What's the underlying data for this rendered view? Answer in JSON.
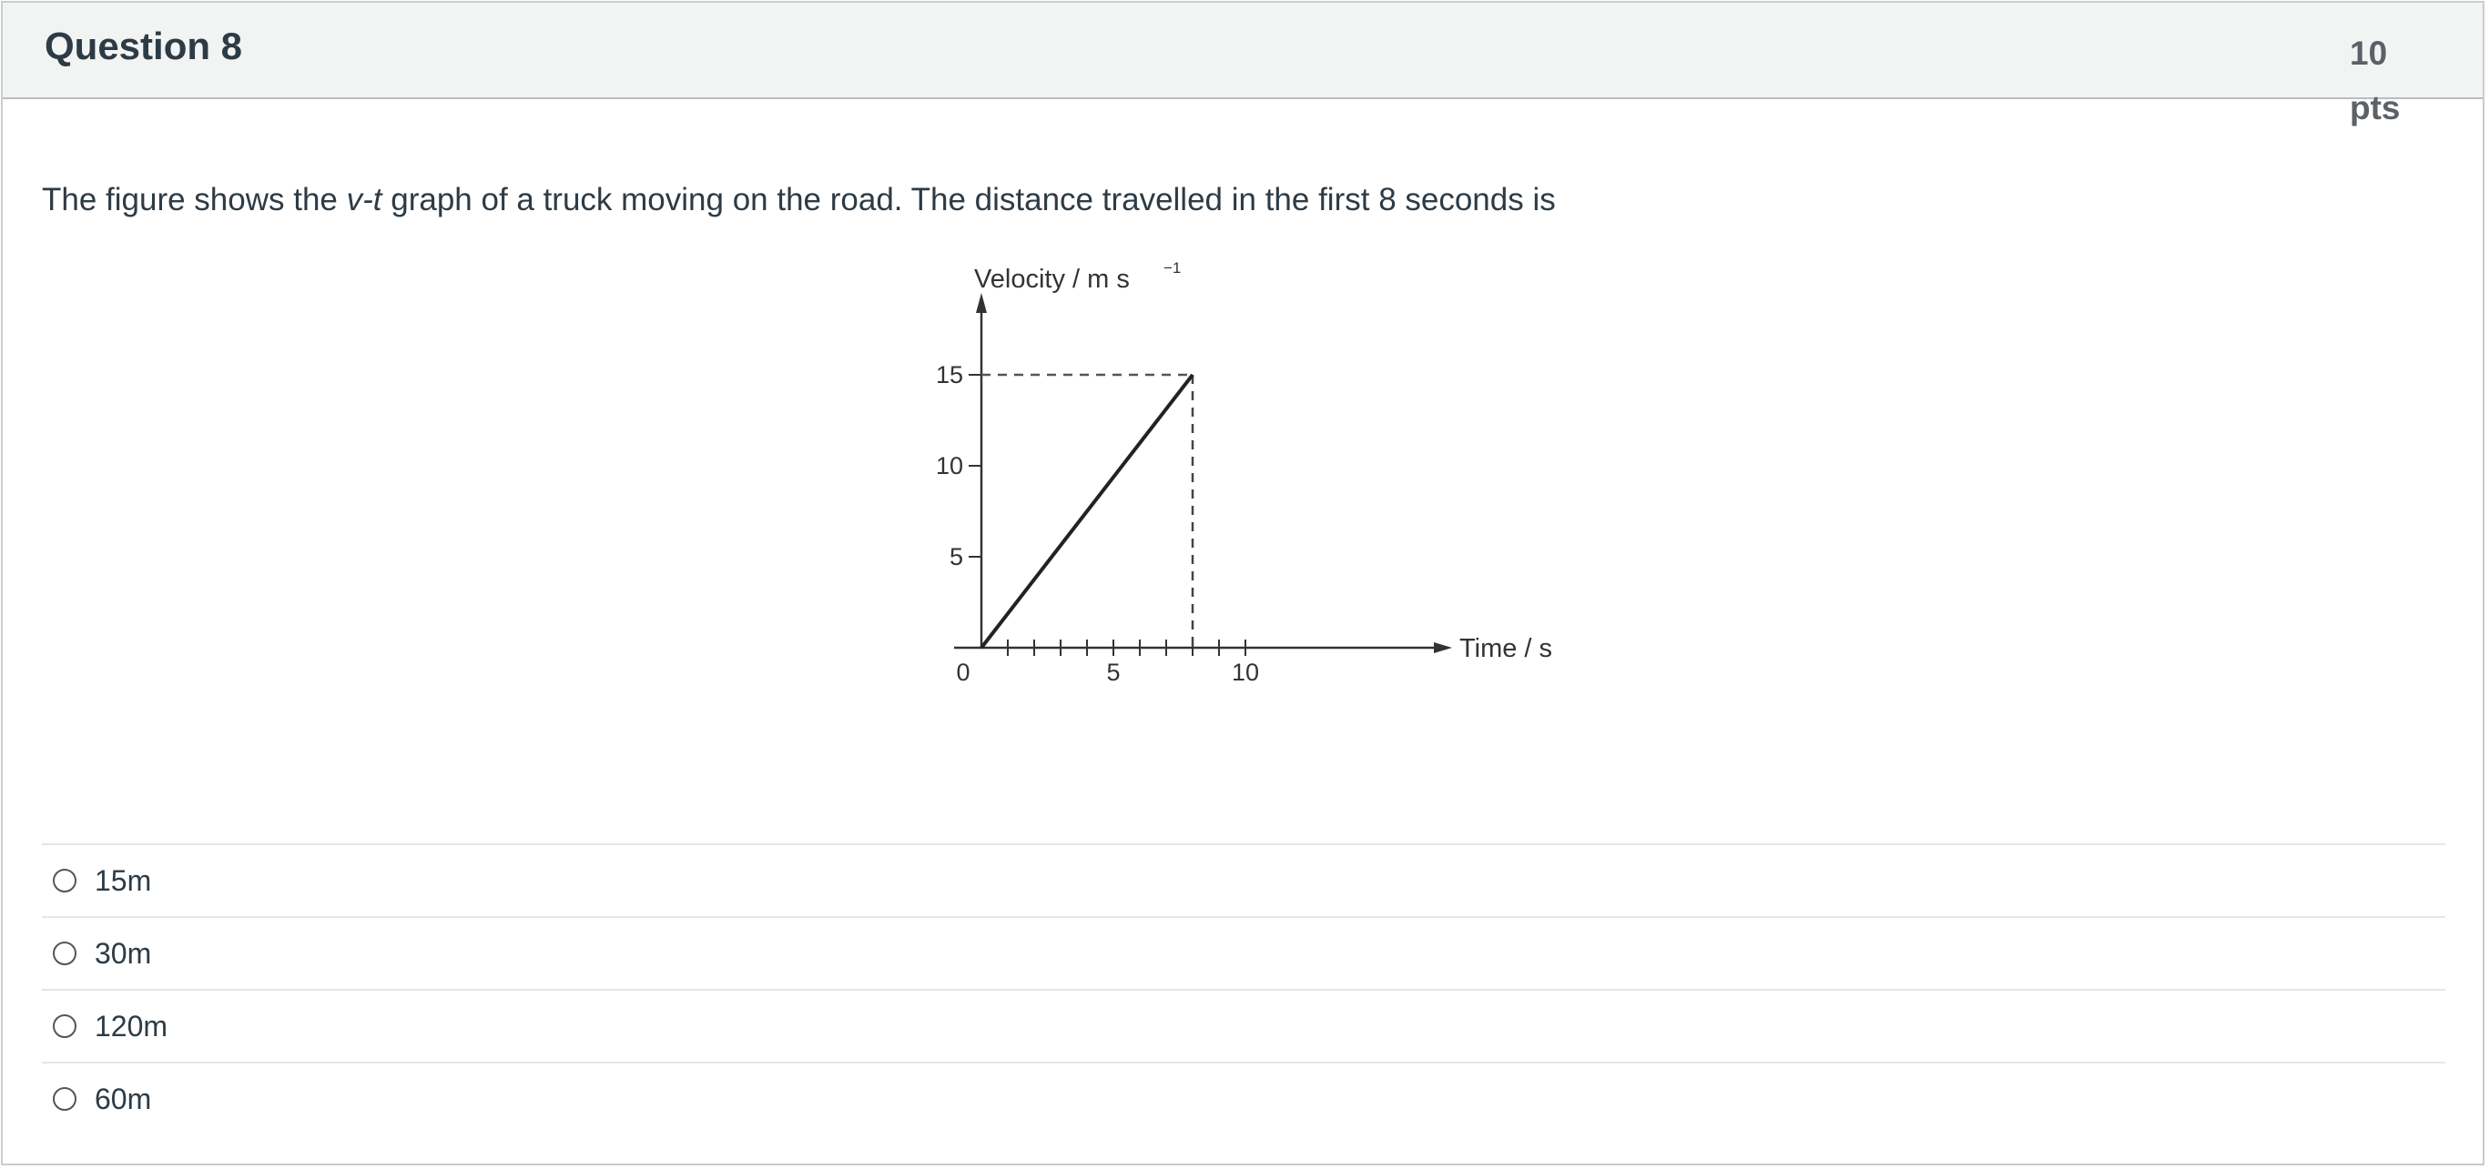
{
  "header": {
    "title": "Question 8",
    "points": "10 pts"
  },
  "question": {
    "text_before": "The figure shows the ",
    "text_italic": "v-t",
    "text_after": " graph of a truck moving on the road. The distance travelled in the first 8 seconds is"
  },
  "chart_data": {
    "type": "line",
    "xlabel": "Time / s",
    "ylabel": "Velocity / m s",
    "ylabel_sup": "−1",
    "x_ticks": [
      0,
      1,
      2,
      3,
      4,
      5,
      6,
      7,
      8,
      9,
      10
    ],
    "x_tick_labels": [
      "0",
      "5",
      "10"
    ],
    "y_tick_labels": [
      "5",
      "10",
      "15"
    ],
    "y_ticks": [
      5,
      10,
      15
    ],
    "series": [
      {
        "x": [
          0,
          8
        ],
        "y": [
          0,
          15
        ]
      }
    ],
    "guides": {
      "x": 8,
      "y": 15,
      "style": "dashed"
    },
    "xlim": [
      0,
      12
    ],
    "ylim": [
      0,
      19
    ]
  },
  "answers": [
    {
      "label": "15m"
    },
    {
      "label": "30m"
    },
    {
      "label": "120m"
    },
    {
      "label": "60m"
    }
  ]
}
